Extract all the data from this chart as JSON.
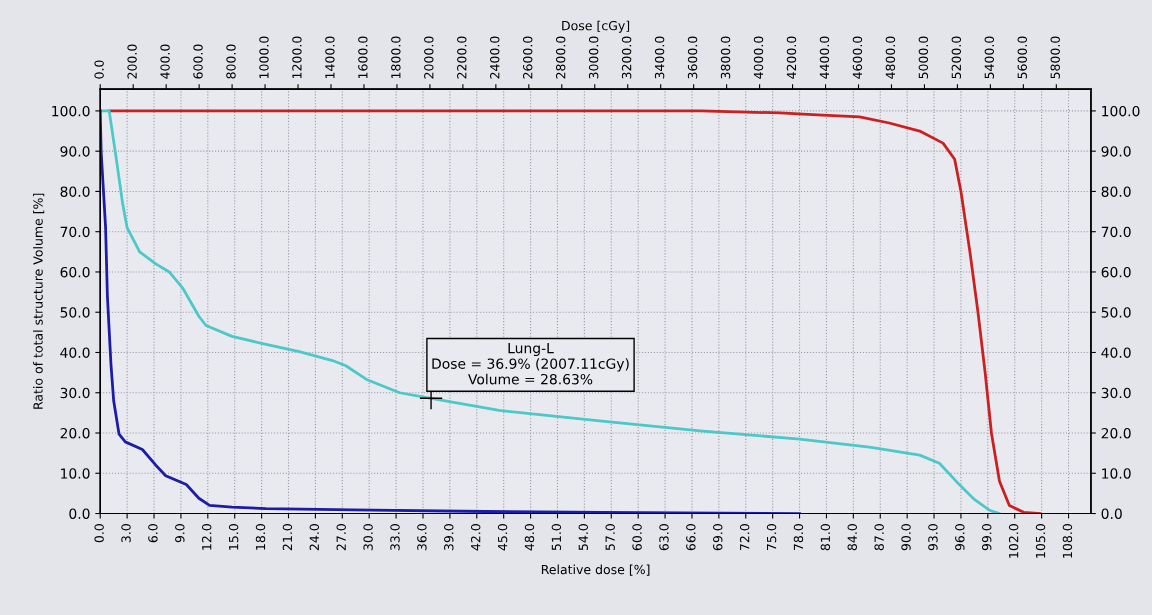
{
  "chart_data": {
    "type": "line",
    "xlabel": "Relative dose [%]",
    "x2label": "Dose [cGy]",
    "ylabel": "Ratio of total structure Volume [%]",
    "xlim": [
      0,
      110.5
    ],
    "xticks": [
      {
        "value": 0,
        "label": "0.0"
      },
      {
        "value": 3,
        "label": "3.0"
      },
      {
        "value": 6,
        "label": "6.0"
      },
      {
        "value": 9,
        "label": "9.0"
      },
      {
        "value": 12,
        "label": "12.0"
      },
      {
        "value": 15,
        "label": "15.0"
      },
      {
        "value": 18,
        "label": "18.0"
      },
      {
        "value": 21,
        "label": "21.0"
      },
      {
        "value": 24,
        "label": "24.0"
      },
      {
        "value": 27,
        "label": "27.0"
      },
      {
        "value": 30,
        "label": "30.0"
      },
      {
        "value": 33,
        "label": "33.0"
      },
      {
        "value": 36,
        "label": "36.0"
      },
      {
        "value": 39,
        "label": "39.0"
      },
      {
        "value": 42,
        "label": "42.0"
      },
      {
        "value": 45,
        "label": "45.0"
      },
      {
        "value": 48,
        "label": "48.0"
      },
      {
        "value": 51,
        "label": "51.0"
      },
      {
        "value": 54,
        "label": "54.0"
      },
      {
        "value": 57,
        "label": "57.0"
      },
      {
        "value": 60,
        "label": "60.0"
      },
      {
        "value": 63,
        "label": "63.0"
      },
      {
        "value": 66,
        "label": "66.0"
      },
      {
        "value": 69,
        "label": "69.0"
      },
      {
        "value": 72,
        "label": "72.0"
      },
      {
        "value": 75,
        "label": "75.0"
      },
      {
        "value": 78,
        "label": "78.0"
      },
      {
        "value": 81,
        "label": "81.0"
      },
      {
        "value": 84,
        "label": "84.0"
      },
      {
        "value": 87,
        "label": "87.0"
      },
      {
        "value": 90,
        "label": "90.0"
      },
      {
        "value": 93,
        "label": "93.0"
      },
      {
        "value": 96,
        "label": "96.0"
      },
      {
        "value": 99,
        "label": "99.0"
      },
      {
        "value": 102,
        "label": "102.0"
      },
      {
        "value": 105,
        "label": "105.0"
      },
      {
        "value": 108,
        "label": "108.0"
      }
    ],
    "x2lim": [
      0,
      6010
    ],
    "x2ticks": [
      {
        "value": 0,
        "label": "0.0"
      },
      {
        "value": 200,
        "label": "200.0"
      },
      {
        "value": 400,
        "label": "400.0"
      },
      {
        "value": 600,
        "label": "600.0"
      },
      {
        "value": 800,
        "label": "800.0"
      },
      {
        "value": 1000,
        "label": "1000.0"
      },
      {
        "value": 1200,
        "label": "1200.0"
      },
      {
        "value": 1400,
        "label": "1400.0"
      },
      {
        "value": 1600,
        "label": "1600.0"
      },
      {
        "value": 1800,
        "label": "1800.0"
      },
      {
        "value": 2000,
        "label": "2000.0"
      },
      {
        "value": 2200,
        "label": "2200.0"
      },
      {
        "value": 2400,
        "label": "2400.0"
      },
      {
        "value": 2600,
        "label": "2600.0"
      },
      {
        "value": 2800,
        "label": "2800.0"
      },
      {
        "value": 3000,
        "label": "3000.0"
      },
      {
        "value": 3200,
        "label": "3200.0"
      },
      {
        "value": 3400,
        "label": "3400.0"
      },
      {
        "value": 3600,
        "label": "3600.0"
      },
      {
        "value": 3800,
        "label": "3800.0"
      },
      {
        "value": 4000,
        "label": "4000.0"
      },
      {
        "value": 4200,
        "label": "4200.0"
      },
      {
        "value": 4400,
        "label": "4400.0"
      },
      {
        "value": 4600,
        "label": "4600.0"
      },
      {
        "value": 4800,
        "label": "4800.0"
      },
      {
        "value": 5000,
        "label": "5000.0"
      },
      {
        "value": 5200,
        "label": "5200.0"
      },
      {
        "value": 5400,
        "label": "5400.0"
      },
      {
        "value": 5600,
        "label": "5600.0"
      },
      {
        "value": 5800,
        "label": "5800.0"
      }
    ],
    "ylim": [
      0,
      105.4
    ],
    "yticks": [
      {
        "value": 0,
        "label": "0.0"
      },
      {
        "value": 10,
        "label": "10.0"
      },
      {
        "value": 20,
        "label": "20.0"
      },
      {
        "value": 30,
        "label": "30.0"
      },
      {
        "value": 40,
        "label": "40.0"
      },
      {
        "value": 50,
        "label": "50.0"
      },
      {
        "value": 60,
        "label": "60.0"
      },
      {
        "value": 70,
        "label": "70.0"
      },
      {
        "value": 80,
        "label": "80.0"
      },
      {
        "value": 90,
        "label": "90.0"
      },
      {
        "value": 100,
        "label": "100.0"
      }
    ],
    "y2lim": [
      0,
      105.4
    ],
    "y2ticks": [
      {
        "value": 0,
        "label": "0.0"
      },
      {
        "value": 10,
        "label": "10.0"
      },
      {
        "value": 20,
        "label": "20.0"
      },
      {
        "value": 30,
        "label": "30.0"
      },
      {
        "value": 40,
        "label": "40.0"
      },
      {
        "value": 50,
        "label": "50.0"
      },
      {
        "value": 60,
        "label": "60.0"
      },
      {
        "value": 70,
        "label": "70.0"
      },
      {
        "value": 80,
        "label": "80.0"
      },
      {
        "value": 90,
        "label": "90.0"
      },
      {
        "value": 100,
        "label": "100.0"
      }
    ],
    "grid": true,
    "series": [
      {
        "color": "#cc1f1f",
        "x": [
          1.0,
          20,
          40,
          60,
          67,
          75.8,
          80,
          84.7,
          88,
          91.4,
          94,
          95.3,
          96,
          97,
          97.9,
          98.7,
          99.4,
          100.3,
          101.4,
          103,
          104.8
        ],
        "values": [
          100,
          100,
          100,
          100,
          100,
          99.5,
          99,
          98.5,
          97,
          95,
          92,
          88,
          80,
          65,
          50,
          35,
          20,
          8,
          2,
          0.3,
          0
        ]
      },
      {
        "color": "#4cc8c8",
        "x": [
          0,
          1.0,
          1.8,
          2.5,
          3.0,
          4.4,
          6.2,
          7.7,
          9.2,
          11,
          11.8,
          14.7,
          18.5,
          22.2,
          25.9,
          27.4,
          29.7,
          33.4,
          36.9,
          44.5,
          55.7,
          66.9,
          78,
          85.8,
          91.4,
          93.6,
          95.9,
          97.5,
          99.2,
          100.3
        ],
        "values": [
          100,
          100,
          88,
          77,
          71,
          65,
          62,
          60,
          56,
          49,
          46.7,
          44,
          42,
          40.2,
          38,
          36.7,
          33.3,
          30,
          28.6,
          25.6,
          23,
          20.5,
          18.5,
          16.5,
          14.5,
          12.5,
          7,
          3.5,
          0.8,
          0
        ]
      },
      {
        "color": "#1c1ca8",
        "x": [
          0,
          0.1,
          0.6,
          0.8,
          1.2,
          1.5,
          2.1,
          2.8,
          4.7,
          6.2,
          7.3,
          9.6,
          11,
          12.2,
          14.7,
          18.5,
          28.2,
          43,
          56,
          78
        ],
        "values": [
          100,
          90,
          71,
          54,
          37,
          28,
          19.7,
          17.8,
          15.9,
          12,
          9.4,
          7.2,
          3.8,
          2,
          1.6,
          1.2,
          0.9,
          0.5,
          0.3,
          0
        ]
      }
    ],
    "annotations": [
      {
        "text": "Lung-L\nDose = 36.9% (2007.11cGy)\nVolume = 28.63%",
        "x": 36.9,
        "y": 28.63
      }
    ]
  }
}
